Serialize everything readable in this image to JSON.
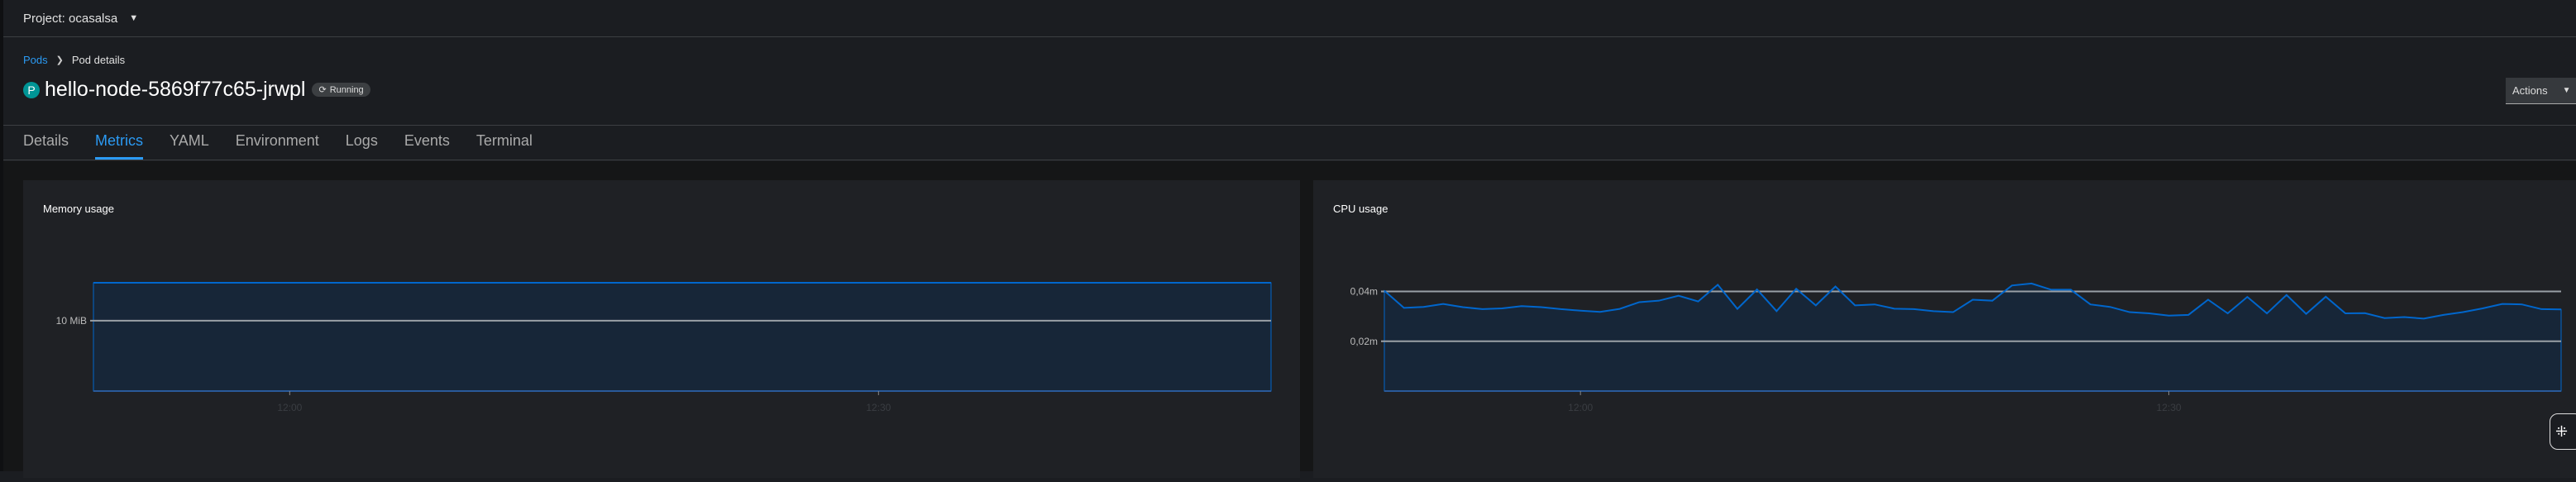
{
  "topbar": {
    "project_label": "Project: ocasalsa"
  },
  "breadcrumb": {
    "parent": "Pods",
    "current": "Pod details"
  },
  "header": {
    "badge": "P",
    "title": "hello-node-5869f77c65-jrwpl",
    "status": "Running",
    "actions_label": "Actions"
  },
  "tabs": [
    {
      "label": "Details"
    },
    {
      "label": "Metrics",
      "active": true
    },
    {
      "label": "YAML"
    },
    {
      "label": "Environment"
    },
    {
      "label": "Logs"
    },
    {
      "label": "Events"
    },
    {
      "label": "Terminal"
    }
  ],
  "colors": {
    "accent": "#2b9af3",
    "series_line": "#0066cc",
    "series_fill": "#172638"
  },
  "chart_data": [
    {
      "type": "area",
      "title": "Memory usage",
      "x_range": [
        "11:50",
        "12:50"
      ],
      "x_ticks": [
        "12:00",
        "12:30"
      ],
      "y_ticks": [
        "10 MiB"
      ],
      "ylim": [
        0,
        15.4
      ],
      "series": [
        {
          "unit": "MiB",
          "x": [
            "11:50",
            "12:50"
          ],
          "values": [
            15.4,
            15.4
          ]
        }
      ]
    },
    {
      "type": "area",
      "title": "CPU usage",
      "x_range": [
        "11:50",
        "12:50"
      ],
      "x_ticks": [
        "12:00",
        "12:30"
      ],
      "y_ticks": [
        "0,02m",
        "0,04m"
      ],
      "ylim": [
        0,
        0.0435
      ],
      "series": [
        {
          "unit": "m",
          "x_start": "11:50",
          "x_step_minutes": 1,
          "values": [
            0.0403,
            0.0334,
            0.0338,
            0.035,
            0.0337,
            0.0329,
            0.0332,
            0.0341,
            0.0337,
            0.0329,
            0.0323,
            0.0318,
            0.033,
            0.0357,
            0.0363,
            0.0383,
            0.036,
            0.0427,
            0.033,
            0.0408,
            0.0321,
            0.0411,
            0.0344,
            0.042,
            0.0344,
            0.0348,
            0.0331,
            0.0329,
            0.0321,
            0.0317,
            0.0367,
            0.0363,
            0.0424,
            0.0432,
            0.0407,
            0.0407,
            0.0348,
            0.0338,
            0.0317,
            0.0312,
            0.0303,
            0.0306,
            0.0367,
            0.0312,
            0.0378,
            0.0312,
            0.0386,
            0.031,
            0.0379,
            0.0312,
            0.0313,
            0.0293,
            0.0297,
            0.0291,
            0.0306,
            0.0317,
            0.0332,
            0.035,
            0.0348,
            0.0329,
            0.0328
          ]
        }
      ]
    }
  ]
}
